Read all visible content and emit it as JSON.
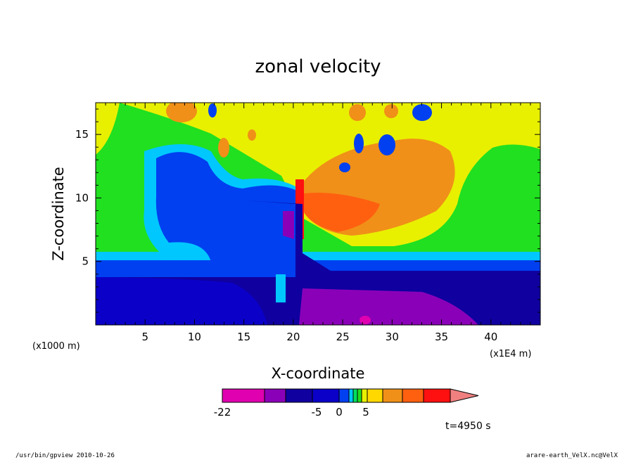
{
  "chart_data": {
    "type": "heatmap",
    "title": "zonal velocity",
    "xlabel": "X-coordinate",
    "ylabel": "Z-coordinate",
    "x_units": "(x1E4 m)",
    "y_units": "(x1000 m)",
    "xlim": [
      0,
      45
    ],
    "ylim": [
      0,
      17.5
    ],
    "x_ticks": [
      5,
      10,
      15,
      20,
      25,
      30,
      35,
      40
    ],
    "y_ticks": [
      5,
      10,
      15
    ],
    "grid": false,
    "colorbar": {
      "labels": [
        {
          "text": "-22",
          "value": -22
        },
        {
          "text": "-5",
          "value": -5
        },
        {
          "text": "0",
          "value": 0
        },
        {
          "text": "5",
          "value": 5
        }
      ],
      "colors": [
        "#e000b0",
        "#8a00b8",
        "#1000a0",
        "#0a00c8",
        "#0040f0",
        "#00c8ff",
        "#00e060",
        "#20e020",
        "#e8f000",
        "#ffd800",
        "#f09018",
        "#ff6010",
        "#ff1010",
        "#f08080"
      ]
    },
    "annotation": "t=4950 s"
  },
  "footer": {
    "left": "/usr/bin/gpview  2010-10-26",
    "right": "arare-earth_VelX.nc@VelX"
  }
}
